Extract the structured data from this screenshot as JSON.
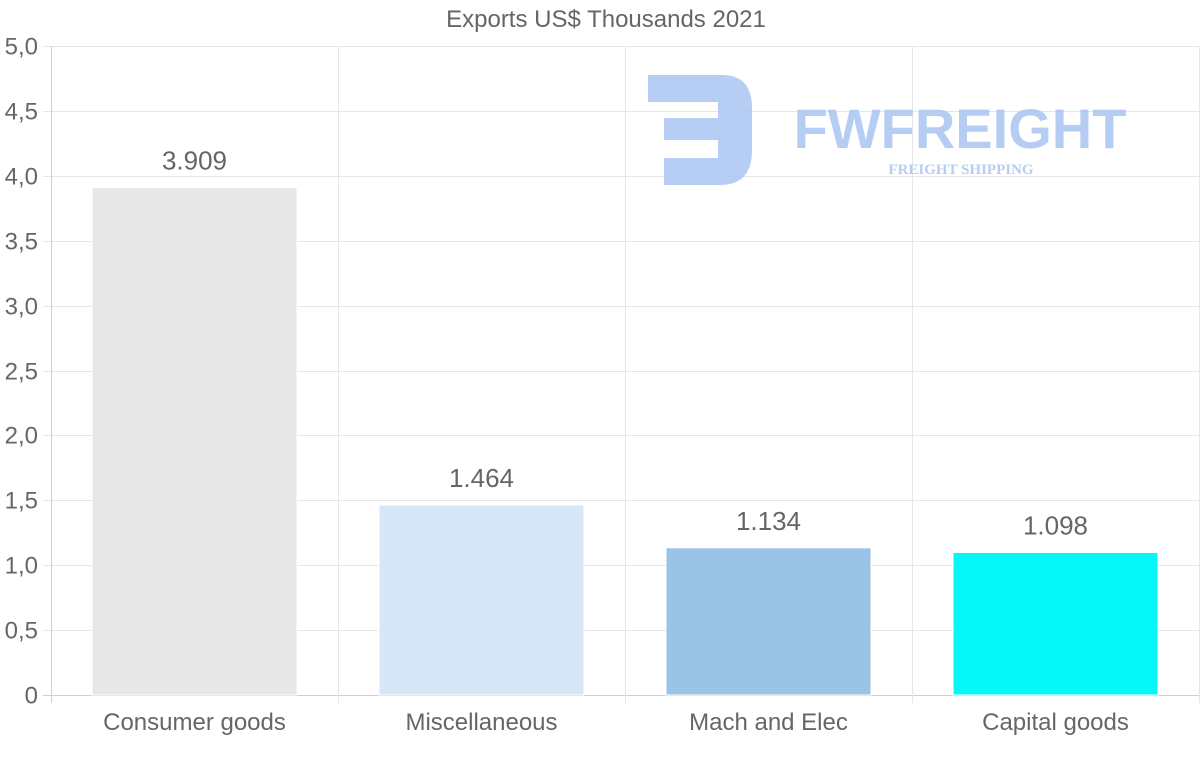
{
  "chart_data": {
    "type": "bar",
    "title": "Exports US$ Thousands 2021",
    "categories": [
      "Consumer goods",
      "Miscellaneous",
      "Mach and Elec",
      "Capital goods"
    ],
    "values": [
      3.909,
      1.464,
      1.134,
      1.098
    ],
    "value_labels": [
      "3.909",
      "1.464",
      "1.134",
      "1.098"
    ],
    "colors": [
      "#e7e7e7",
      "#d8e7f8",
      "#9bc3e6",
      "#05f8f8"
    ],
    "ylim": [
      0,
      5
    ],
    "yticks": [
      0,
      0.5,
      1,
      1.5,
      2,
      2.5,
      3,
      3.5,
      4,
      4.5,
      5
    ],
    "ytick_labels": [
      "0",
      "0,5",
      "1,0",
      "1,5",
      "2,0",
      "2,5",
      "3,0",
      "3,5",
      "4,0",
      "4,5",
      "5,0"
    ],
    "grid": true,
    "xlabel": "",
    "ylabel": ""
  },
  "watermark": {
    "name": "FWFREIGHT",
    "tagline": "FREIGHT SHIPPING",
    "color": "#a9c5f2"
  }
}
